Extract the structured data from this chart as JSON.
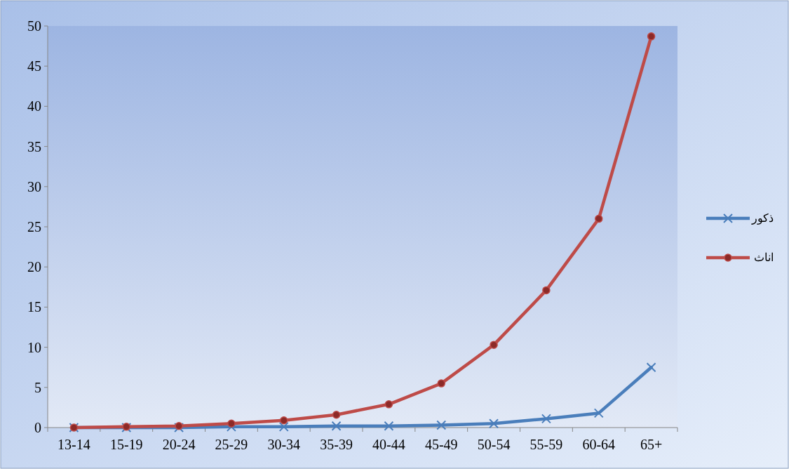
{
  "chart_data": {
    "type": "line",
    "categories": [
      "13-14",
      "15-19",
      "20-24",
      "25-29",
      "30-34",
      "35-39",
      "40-44",
      "45-49",
      "50-54",
      "55-59",
      "60-64",
      "65+"
    ],
    "series": [
      {
        "name": "ذكور",
        "color": "#4a7ebb",
        "marker": "cross",
        "values": [
          0,
          0,
          0,
          0.1,
          0.1,
          0.2,
          0.2,
          0.3,
          0.5,
          1.1,
          1.8,
          7.5
        ]
      },
      {
        "name": "اناث",
        "color": "#be4b48",
        "marker": "circle",
        "values": [
          0,
          0.1,
          0.2,
          0.5,
          0.9,
          1.6,
          2.9,
          5.5,
          10.3,
          17.1,
          26,
          48.7
        ]
      }
    ],
    "ylim": [
      0,
      50
    ],
    "yticks": [
      0,
      5,
      10,
      15,
      20,
      25,
      30,
      35,
      40,
      45,
      50
    ],
    "grid": false,
    "legend": "right"
  }
}
